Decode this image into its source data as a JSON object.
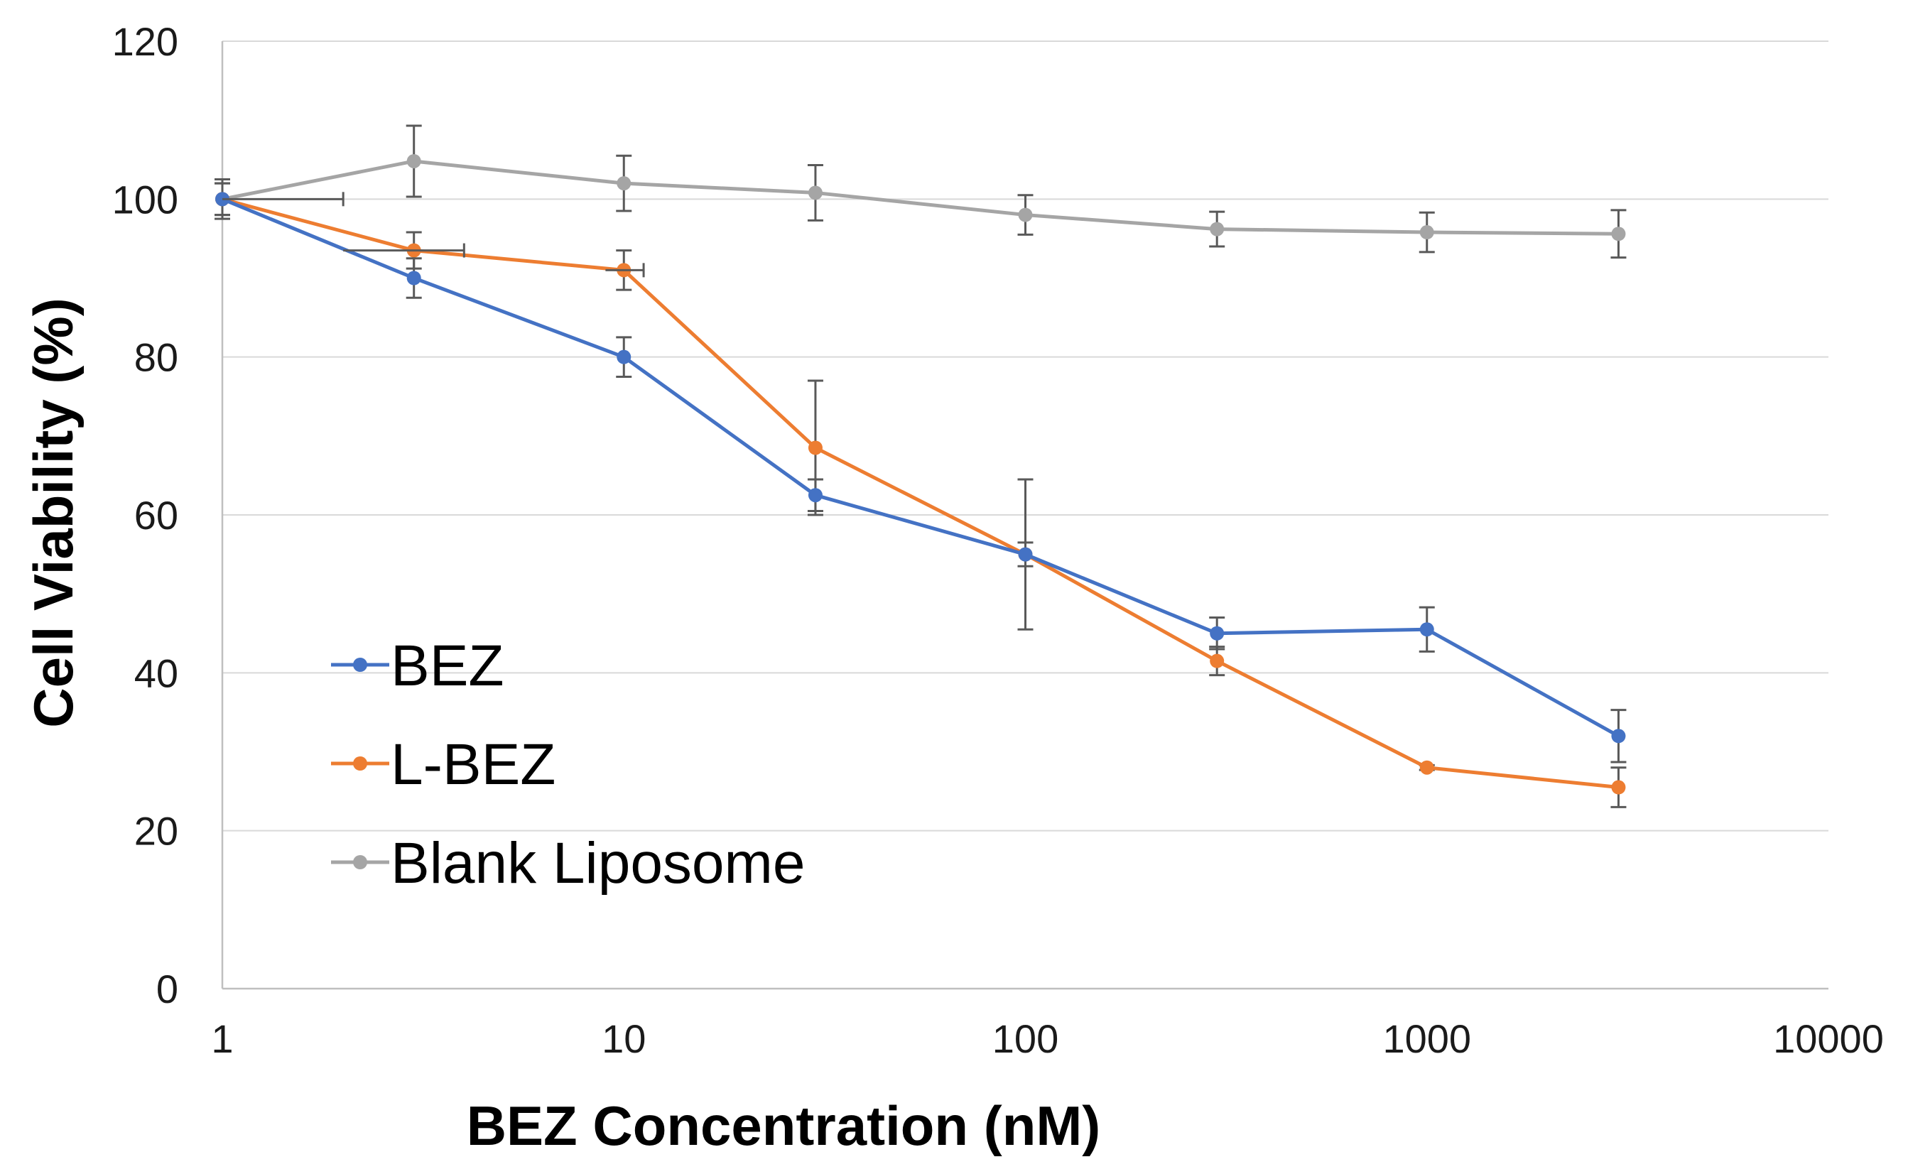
{
  "chart_data": {
    "type": "line",
    "title": "",
    "xlabel": "BEZ Concentration (nM)",
    "ylabel": "Cell Viability (%)",
    "x_scale": "log",
    "xlim": [
      1,
      10000
    ],
    "ylim": [
      0,
      120
    ],
    "x_ticks": [
      1,
      10,
      100,
      1000,
      10000
    ],
    "x_tick_labels": [
      "1",
      "10",
      "100",
      "1000",
      "10000"
    ],
    "y_ticks": [
      0,
      20,
      40,
      60,
      80,
      100,
      120
    ],
    "y_tick_labels": [
      "0",
      "20",
      "40",
      "60",
      "80",
      "100",
      "120"
    ],
    "grid": true,
    "legend_position": "lower-left",
    "x": [
      1,
      3,
      10,
      30,
      100,
      300,
      1000,
      3000
    ],
    "series": [
      {
        "name": "BEZ",
        "color": "#4472C4",
        "values": [
          100,
          90,
          80,
          62.5,
          55,
          45,
          45.5,
          32
        ],
        "errors": [
          2,
          2.5,
          2.5,
          2,
          1.5,
          2,
          2.8,
          3.3
        ]
      },
      {
        "name": "L-BEZ",
        "color": "#ED7D31",
        "values": [
          100,
          93.5,
          91,
          68.5,
          55,
          41.5,
          28,
          25.5
        ],
        "errors": [
          2,
          2.3,
          2.5,
          8.5,
          9.5,
          1.8,
          0.3,
          2.5
        ]
      },
      {
        "name": "Blank Liposome",
        "color": "#A5A5A5",
        "values": [
          100,
          104.8,
          102,
          100.8,
          98,
          96.2,
          95.8,
          95.6
        ],
        "errors": [
          2.5,
          4.5,
          3.5,
          3.5,
          2.5,
          2.2,
          2.5,
          3
        ]
      }
    ]
  }
}
